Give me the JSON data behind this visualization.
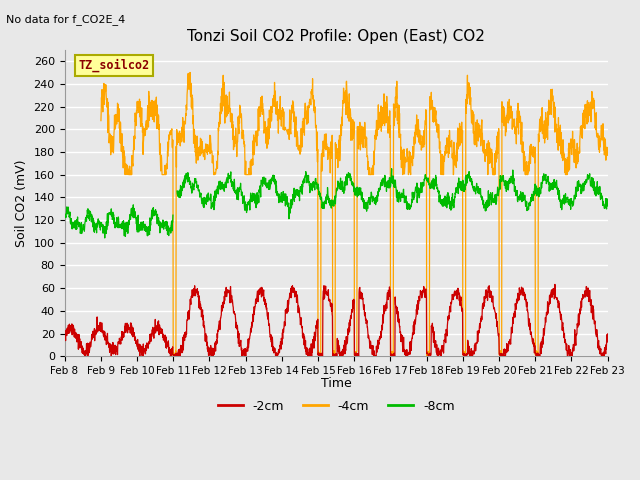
{
  "title": "Tonzi Soil CO2 Profile: Open (East) CO2",
  "subtitle": "No data for f_CO2E_4",
  "ylabel": "Soil CO2 (mV)",
  "xlabel": "Time",
  "legend_label": "TZ_soilco2",
  "ylim": [
    0,
    270
  ],
  "yticks": [
    0,
    20,
    40,
    60,
    80,
    100,
    120,
    140,
    160,
    180,
    200,
    220,
    240,
    260
  ],
  "xticklabels": [
    "Feb 8",
    "Feb 9",
    "Feb 10",
    "Feb 11",
    "Feb 12",
    "Feb 13",
    "Feb 14",
    "Feb 15",
    "Feb 16",
    "Feb 17",
    "Feb 18",
    "Feb 19",
    "Feb 20",
    "Feb 21",
    "Feb 22",
    "Feb 23"
  ],
  "line_colors": {
    "2cm": "#cc0000",
    "4cm": "#ffa500",
    "8cm": "#00bb00"
  },
  "legend_entries": [
    "-2cm",
    "-4cm",
    "-8cm"
  ],
  "bg_color": "#e8e8e8",
  "plot_bg_color": "#e8e8e8",
  "grid_color": "#ffffff",
  "n_points": 2000
}
